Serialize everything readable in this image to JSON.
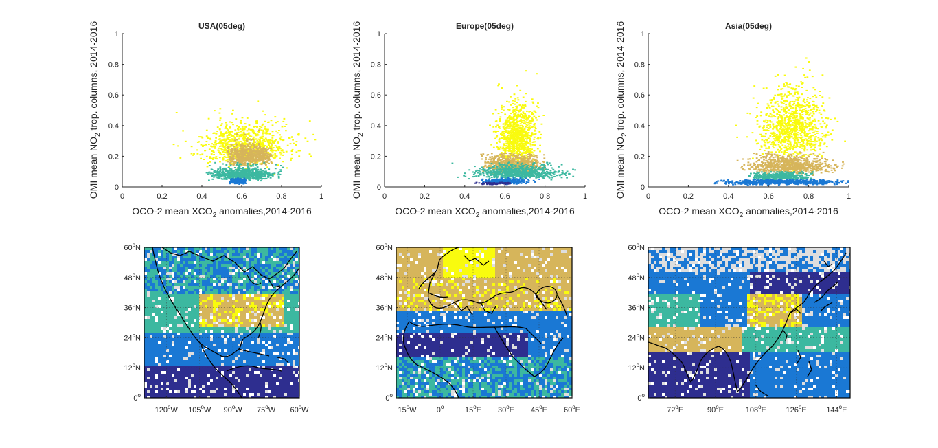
{
  "colors": {
    "yellow": "#f9fb0e",
    "gold": "#d6b55b",
    "teal": "#3cb8a0",
    "blue": "#1a78d4",
    "navy": "#2e2e8f",
    "gray": "#dedede",
    "white": "#ffffff"
  },
  "chart_data": [
    {
      "id": "usa-scatter",
      "type": "scatter",
      "title": "USA(05deg)",
      "xlabel_parts": [
        "OCO-2 mean XCO",
        "2",
        " anomalies,2014-2016"
      ],
      "ylabel_parts": [
        "OMI mean NO",
        "2",
        " trop. columns, 2014-2016"
      ],
      "xlim": [
        0,
        1
      ],
      "ylim": [
        0,
        1
      ],
      "xticks": [
        "0",
        "0.2",
        "0.4",
        "0.6",
        "0.8",
        "1"
      ],
      "yticks": [
        "0",
        "0.2",
        "0.4",
        "0.6",
        "0.8",
        "1"
      ],
      "clusters": [
        {
          "name": "yellow",
          "color": "yellow",
          "cx": 0.62,
          "cy": 0.22,
          "sx": 0.11,
          "sy": 0.1,
          "n": 900,
          "xrange": [
            0.12,
            1.0
          ],
          "yrange": [
            0.02,
            1.0
          ]
        },
        {
          "name": "gold",
          "color": "gold",
          "cx": 0.64,
          "cy": 0.18,
          "sx": 0.06,
          "sy": 0.05,
          "n": 700,
          "xrange": [
            0.53,
            0.75
          ],
          "yrange": [
            0.13,
            0.37
          ]
        },
        {
          "name": "teal",
          "color": "teal",
          "cx": 0.6,
          "cy": 0.07,
          "sx": 0.08,
          "sy": 0.03,
          "n": 700,
          "xrange": [
            0.42,
            0.82
          ],
          "yrange": [
            0.02,
            0.16
          ]
        },
        {
          "name": "blue",
          "color": "blue",
          "cx": 0.58,
          "cy": 0.03,
          "sx": 0.03,
          "sy": 0.012,
          "n": 200,
          "xrange": [
            0.54,
            0.62
          ],
          "yrange": [
            0.0,
            0.06
          ]
        }
      ]
    },
    {
      "id": "europe-scatter",
      "type": "scatter",
      "title": "Europe(05deg)",
      "xlabel_parts": [
        "OCO-2 mean XCO",
        "2",
        " anomalies,2014-2016"
      ],
      "ylabel_parts": [
        "OMI mean NO",
        "2",
        " trop. columns, 2014-2016"
      ],
      "xlim": [
        0,
        1
      ],
      "ylim": [
        0,
        1
      ],
      "xticks": [
        "0",
        "0.2",
        "0.4",
        "0.6",
        "0.8",
        "1"
      ],
      "yticks": [
        "0",
        "0.2",
        "0.4",
        "0.6",
        "0.8",
        "1"
      ],
      "clusters": [
        {
          "name": "yellow",
          "color": "yellow",
          "cx": 0.66,
          "cy": 0.28,
          "sx": 0.05,
          "sy": 0.13,
          "n": 900,
          "xrange": [
            0.5,
            0.82
          ],
          "yrange": [
            0.1,
            1.0
          ]
        },
        {
          "name": "gold",
          "color": "gold",
          "cx": 0.64,
          "cy": 0.13,
          "sx": 0.07,
          "sy": 0.04,
          "n": 700,
          "xrange": [
            0.48,
            0.8
          ],
          "yrange": [
            0.06,
            0.22
          ]
        },
        {
          "name": "teal",
          "color": "teal",
          "cx": 0.66,
          "cy": 0.08,
          "sx": 0.1,
          "sy": 0.03,
          "n": 700,
          "xrange": [
            0.3,
            0.98
          ],
          "yrange": [
            0.02,
            0.16
          ]
        },
        {
          "name": "blue",
          "color": "blue",
          "cx": 0.6,
          "cy": 0.03,
          "sx": 0.05,
          "sy": 0.012,
          "n": 300,
          "xrange": [
            0.45,
            0.78
          ],
          "yrange": [
            0.0,
            0.06
          ]
        },
        {
          "name": "navy",
          "color": "navy",
          "cx": 0.55,
          "cy": 0.02,
          "sx": 0.04,
          "sy": 0.006,
          "n": 80,
          "xrange": [
            0.42,
            0.65
          ],
          "yrange": [
            0.0,
            0.03
          ]
        }
      ]
    },
    {
      "id": "asia-scatter",
      "type": "scatter",
      "title": "Asia(05deg)",
      "xlabel_parts": [
        "OCO-2 mean XCO",
        "2",
        " anomalies,2014-2016"
      ],
      "ylabel_parts": [
        "OMI mean NO",
        "2",
        " trop. columns, 2014-2016"
      ],
      "xlim": [
        0,
        1
      ],
      "ylim": [
        0,
        1
      ],
      "xticks": [
        "0",
        "0.2",
        "0.4",
        "0.6",
        "0.8",
        "1"
      ],
      "yticks": [
        "0",
        "0.2",
        "0.4",
        "0.6",
        "0.8",
        "1"
      ],
      "clusters": [
        {
          "name": "yellow",
          "color": "yellow",
          "cx": 0.72,
          "cy": 0.32,
          "sx": 0.08,
          "sy": 0.16,
          "n": 1000,
          "xrange": [
            0.2,
            1.0
          ],
          "yrange": [
            0.05,
            1.0
          ]
        },
        {
          "name": "gold",
          "color": "gold",
          "cx": 0.7,
          "cy": 0.12,
          "sx": 0.1,
          "sy": 0.04,
          "n": 800,
          "xrange": [
            0.42,
            0.98
          ],
          "yrange": [
            0.04,
            0.25
          ]
        },
        {
          "name": "teal",
          "color": "teal",
          "cx": 0.66,
          "cy": 0.06,
          "sx": 0.08,
          "sy": 0.02,
          "n": 400,
          "xrange": [
            0.5,
            0.82
          ],
          "yrange": [
            0.02,
            0.1
          ]
        },
        {
          "name": "blue",
          "color": "blue",
          "cx": 0.68,
          "cy": 0.025,
          "sx": 0.15,
          "sy": 0.012,
          "n": 700,
          "xrange": [
            0.33,
            1.0
          ],
          "yrange": [
            0.0,
            0.05
          ]
        }
      ]
    },
    {
      "id": "usa-map",
      "type": "heatmap",
      "region": "usa",
      "xticks": [
        {
          "deg": "120",
          "hem": "W",
          "lon": -120
        },
        {
          "deg": "105",
          "hem": "W",
          "lon": -105
        },
        {
          "deg": "90",
          "hem": "W",
          "lon": -90
        },
        {
          "deg": "75",
          "hem": "W",
          "lon": -75
        },
        {
          "deg": "60",
          "hem": "W",
          "lon": -60
        }
      ],
      "yticks": [
        {
          "deg": "60",
          "hem": "N",
          "lat": 60
        },
        {
          "deg": "48",
          "hem": "N",
          "lat": 48
        },
        {
          "deg": "36",
          "hem": "N",
          "lat": 36
        },
        {
          "deg": "24",
          "hem": "N",
          "lat": 24
        },
        {
          "deg": "12",
          "hem": "N",
          "lat": 12
        },
        {
          "deg": "0",
          "hem": "",
          "lat": 0
        }
      ],
      "lon_range": [
        -130,
        -60
      ],
      "lat_range": [
        0,
        60
      ]
    },
    {
      "id": "europe-map",
      "type": "heatmap",
      "region": "europe",
      "xticks": [
        {
          "deg": "15",
          "hem": "W",
          "lon": -15
        },
        {
          "deg": "0",
          "hem": "",
          "lon": 0
        },
        {
          "deg": "15",
          "hem": "E",
          "lon": 15
        },
        {
          "deg": "30",
          "hem": "E",
          "lon": 30
        },
        {
          "deg": "45",
          "hem": "E",
          "lon": 45
        },
        {
          "deg": "60",
          "hem": "E",
          "lon": 60
        }
      ],
      "yticks": [
        {
          "deg": "60",
          "hem": "N",
          "lat": 60
        },
        {
          "deg": "48",
          "hem": "N",
          "lat": 48
        },
        {
          "deg": "36",
          "hem": "N",
          "lat": 36
        },
        {
          "deg": "24",
          "hem": "N",
          "lat": 24
        },
        {
          "deg": "12",
          "hem": "N",
          "lat": 12
        },
        {
          "deg": "0",
          "hem": "",
          "lat": 0
        }
      ],
      "lon_range": [
        -20,
        60
      ],
      "lat_range": [
        0,
        60
      ]
    },
    {
      "id": "asia-map",
      "type": "heatmap",
      "region": "asia",
      "xticks": [
        {
          "deg": "72",
          "hem": "E",
          "lon": 72
        },
        {
          "deg": "90",
          "hem": "E",
          "lon": 90
        },
        {
          "deg": "108",
          "hem": "E",
          "lon": 108
        },
        {
          "deg": "126",
          "hem": "E",
          "lon": 126
        },
        {
          "deg": "144",
          "hem": "E",
          "lon": 144
        }
      ],
      "yticks": [
        {
          "deg": "60",
          "hem": "N",
          "lat": 60
        },
        {
          "deg": "48",
          "hem": "N",
          "lat": 48
        },
        {
          "deg": "36",
          "hem": "N",
          "lat": 36
        },
        {
          "deg": "24",
          "hem": "N",
          "lat": 24
        },
        {
          "deg": "12",
          "hem": "N",
          "lat": 12
        },
        {
          "deg": "0",
          "hem": "",
          "lat": 0
        }
      ],
      "lon_range": [
        60,
        150
      ],
      "lat_range": [
        0,
        60
      ]
    }
  ]
}
